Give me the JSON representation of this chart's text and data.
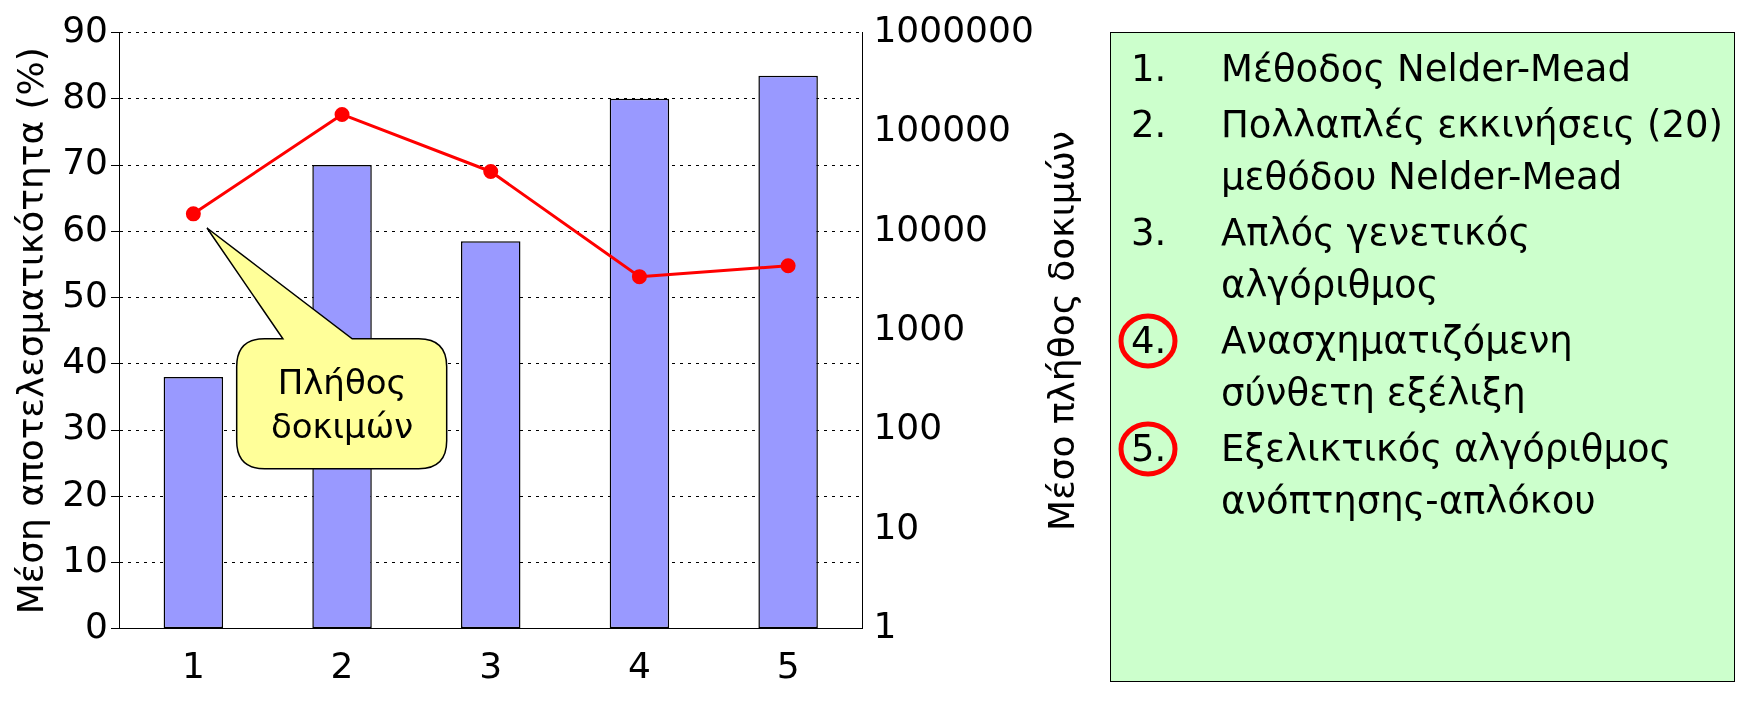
{
  "chart_data": [
    {
      "type": "bar",
      "xlabel": null,
      "ylabel": "Μέση αποτελεσματικότητα (%)",
      "y2label": "Μέσο πλήθος δοκιμών",
      "categories": [
        "1",
        "2",
        "3",
        "4",
        "5"
      ],
      "series": [
        {
          "type": "bar",
          "color": "#9999ff",
          "values": [
            38,
            70,
            58.5,
            80,
            83.5
          ]
        },
        {
          "type": "line",
          "color": "#ff0000",
          "axis": "y2",
          "values": [
            15000,
            150000,
            40000,
            3500,
            4500
          ]
        }
      ],
      "ylim": [
        0,
        90
      ],
      "yticks": [
        0,
        10,
        20,
        30,
        40,
        50,
        60,
        70,
        80,
        90
      ],
      "y2lim": [
        1,
        1000000
      ],
      "y2ticks": [
        1,
        10,
        100,
        1000,
        10000,
        100000,
        1000000
      ],
      "log": "y2",
      "grid": "y",
      "marker": "circle",
      "line_style": "solid",
      "annotations": [
        "Πλήθος δοκιμών"
      ]
    },
    {
      "type": "other",
      "annotations": [
        "1. Μέθοδος Nelder-Mead",
        "2. Πολλαπλές εκκινήσεις (20) μεθόδου Nelder-Mead",
        "3. Απλός γενετικός αλγόριθμος",
        "4. Ανασχηματιζόμενη σύνθετη εξέλιξη",
        "5. Εξελικτικός αλγόριθμος ανόπτησης-απλόκου"
      ]
    }
  ]
}
